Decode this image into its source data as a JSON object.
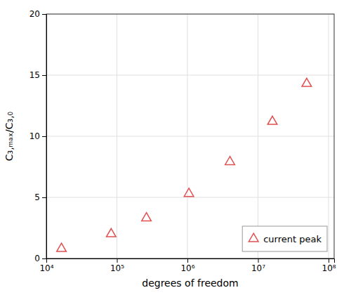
{
  "chart_data": {
    "type": "scatter",
    "x": [
      16384,
      82944,
      262144,
      1048576,
      4000000,
      16000000,
      49000000
    ],
    "series": [
      {
        "name": "current peak",
        "color": "#e05050",
        "marker": "triangle",
        "values": [
          0.8,
          2.0,
          3.3,
          5.3,
          7.9,
          11.2,
          14.3
        ]
      }
    ],
    "x_label": "degrees of freedom",
    "y_label": "C₃,ₘₐₓ/C₃,₀",
    "log": "x",
    "xlim": [
      10000,
      120000000
    ],
    "xticks": [
      {
        "value": 10000,
        "label": "10⁴"
      },
      {
        "value": 100000,
        "label": "10⁵"
      },
      {
        "value": 1000000,
        "label": "10⁶"
      },
      {
        "value": 10000000,
        "label": "10⁷"
      },
      {
        "value": 100000000,
        "label": "10⁸"
      }
    ],
    "ylim": [
      0,
      20
    ],
    "yticks": [
      0,
      5,
      10,
      15,
      20
    ],
    "grid": true,
    "legend": "lower right"
  }
}
